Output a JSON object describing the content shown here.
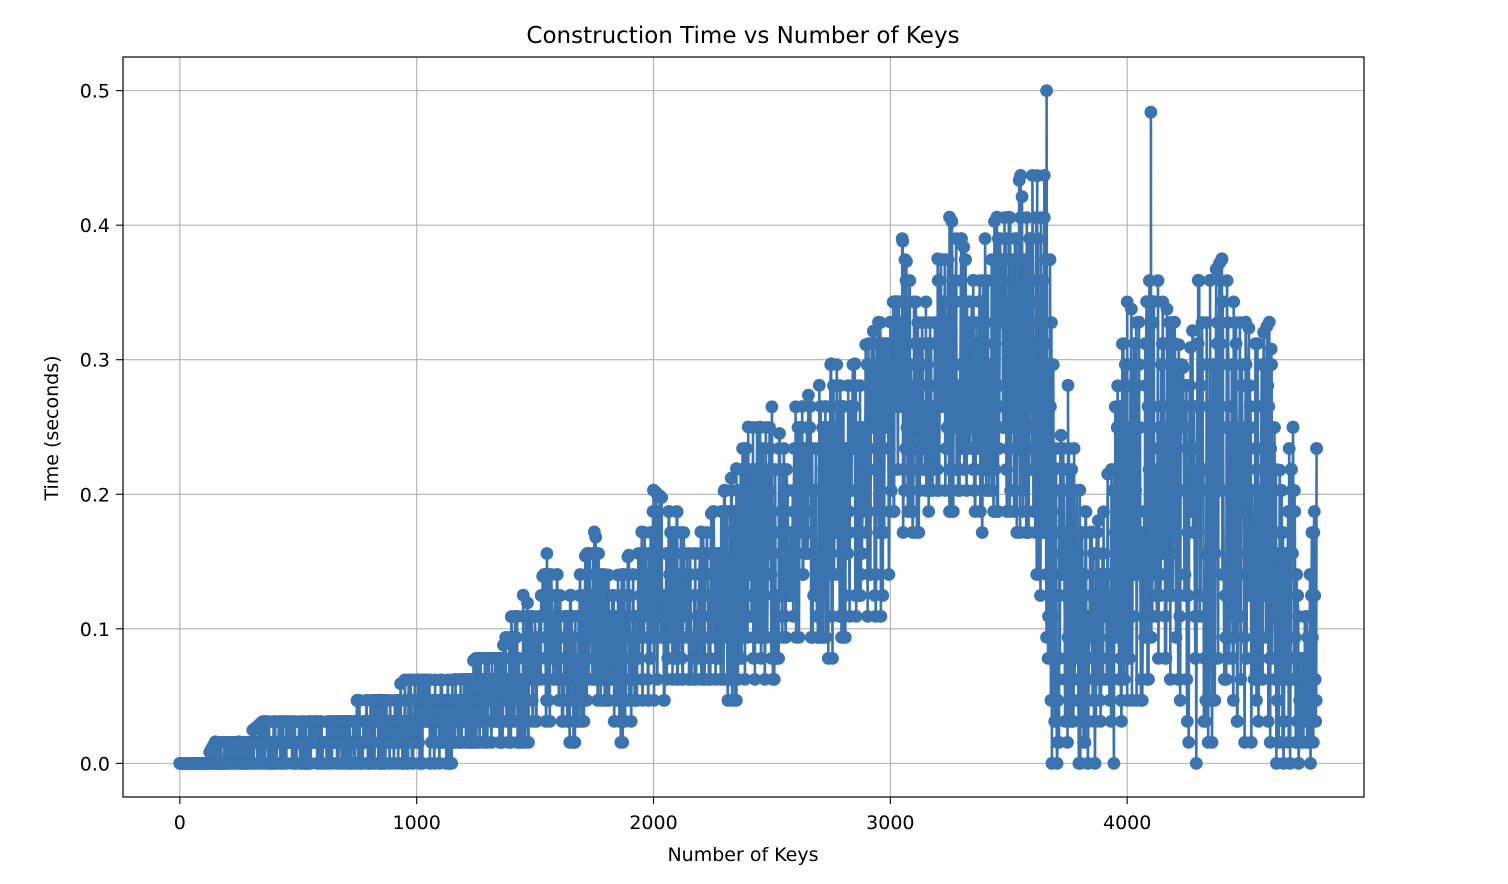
{
  "chart_data": {
    "type": "line",
    "title": "Construction Time vs Number of Keys",
    "xlabel": "Number of Keys",
    "ylabel": "Time (seconds)",
    "xlim": [
      -240,
      5000
    ],
    "ylim": [
      -0.025,
      0.525
    ],
    "xticks": [
      0,
      1000,
      2000,
      3000,
      4000
    ],
    "yticks": [
      0.0,
      0.1,
      0.2,
      0.3,
      0.4,
      0.5
    ],
    "ytick_labels": [
      "0.0",
      "0.1",
      "0.2",
      "0.3",
      "0.4",
      "0.5"
    ],
    "grid": true,
    "marker": "o",
    "color": "#3a73ad",
    "series": [
      {
        "envelope": [
          [
            0,
            0.0,
            0.0
          ],
          [
            100,
            0.0,
            0.0
          ],
          [
            150,
            0.0,
            0.016
          ],
          [
            250,
            0.0,
            0.016
          ],
          [
            350,
            0.0,
            0.031
          ],
          [
            450,
            0.0,
            0.031
          ],
          [
            550,
            0.0,
            0.031
          ],
          [
            650,
            0.0,
            0.031
          ],
          [
            750,
            0.0,
            0.047
          ],
          [
            850,
            0.0,
            0.047
          ],
          [
            950,
            0.0,
            0.062
          ],
          [
            1050,
            0.0,
            0.062
          ],
          [
            1150,
            0.0,
            0.062
          ],
          [
            1250,
            0.016,
            0.078
          ],
          [
            1350,
            0.016,
            0.078
          ],
          [
            1400,
            0.016,
            0.109
          ],
          [
            1450,
            0.016,
            0.125
          ],
          [
            1500,
            0.031,
            0.109
          ],
          [
            1550,
            0.031,
            0.156
          ],
          [
            1650,
            0.016,
            0.125
          ],
          [
            1750,
            0.047,
            0.172
          ],
          [
            1800,
            0.047,
            0.14
          ],
          [
            1850,
            0.016,
            0.14
          ],
          [
            1950,
            0.047,
            0.172
          ],
          [
            2000,
            0.047,
            0.203
          ],
          [
            2100,
            0.062,
            0.187
          ],
          [
            2200,
            0.062,
            0.172
          ],
          [
            2300,
            0.047,
            0.203
          ],
          [
            2350,
            0.047,
            0.219
          ],
          [
            2400,
            0.062,
            0.25
          ],
          [
            2450,
            0.062,
            0.25
          ],
          [
            2500,
            0.062,
            0.265
          ],
          [
            2550,
            0.094,
            0.234
          ],
          [
            2600,
            0.094,
            0.265
          ],
          [
            2700,
            0.094,
            0.281
          ],
          [
            2750,
            0.078,
            0.297
          ],
          [
            2850,
            0.109,
            0.297
          ],
          [
            2950,
            0.109,
            0.328
          ],
          [
            3000,
            0.14,
            0.328
          ],
          [
            3050,
            0.172,
            0.39
          ],
          [
            3100,
            0.172,
            0.343
          ],
          [
            3150,
            0.187,
            0.343
          ],
          [
            3200,
            0.187,
            0.375
          ],
          [
            3250,
            0.187,
            0.406
          ],
          [
            3300,
            0.203,
            0.39
          ],
          [
            3350,
            0.187,
            0.359
          ],
          [
            3400,
            0.172,
            0.39
          ],
          [
            3450,
            0.172,
            0.406
          ],
          [
            3500,
            0.187,
            0.406
          ],
          [
            3550,
            0.172,
            0.437
          ],
          [
            3600,
            0.172,
            0.437
          ],
          [
            3650,
            0.094,
            0.437
          ],
          [
            3660,
            0.0,
            0.5
          ],
          [
            3700,
            0.0,
            0.219
          ],
          [
            3750,
            0.016,
            0.281
          ],
          [
            3800,
            0.0,
            0.203
          ],
          [
            3850,
            0.0,
            0.172
          ],
          [
            3900,
            0.016,
            0.187
          ],
          [
            3950,
            0.0,
            0.265
          ],
          [
            4000,
            0.047,
            0.343
          ],
          [
            4050,
            0.047,
            0.328
          ],
          [
            4100,
            0.062,
            0.484
          ],
          [
            4150,
            0.094,
            0.343
          ],
          [
            4200,
            0.047,
            0.328
          ],
          [
            4250,
            0.016,
            0.281
          ],
          [
            4300,
            0.0,
            0.359
          ],
          [
            4350,
            0.016,
            0.359
          ],
          [
            4400,
            0.031,
            0.375
          ],
          [
            4450,
            0.047,
            0.343
          ],
          [
            4500,
            0.016,
            0.328
          ],
          [
            4550,
            0.031,
            0.312
          ],
          [
            4600,
            0.016,
            0.328
          ],
          [
            4650,
            0.0,
            0.203
          ],
          [
            4700,
            0.0,
            0.25
          ],
          [
            4750,
            0.0,
            0.109
          ],
          [
            4800,
            0.0,
            0.234
          ]
        ]
      }
    ]
  }
}
